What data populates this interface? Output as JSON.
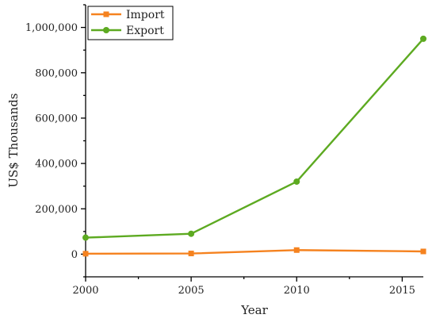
{
  "chart_data": {
    "type": "line",
    "title": "",
    "xlabel": "Year",
    "ylabel": "US$ Thousands",
    "xlim": [
      2000,
      2016
    ],
    "ylim": [
      -100000,
      1100000
    ],
    "x_ticks": [
      2000,
      2005,
      2010,
      2015
    ],
    "x_tick_labels": [
      "2000",
      "2005",
      "2010",
      "2015"
    ],
    "y_ticks": [
      0,
      200000,
      400000,
      600000,
      800000,
      1000000
    ],
    "y_tick_labels": [
      "0",
      "200,000",
      "400,000",
      "600,000",
      "800,000",
      "1,000,000"
    ],
    "grid": false,
    "legend_position": "top-left",
    "series": [
      {
        "name": "Import",
        "color": "#F5821F",
        "marker": "square",
        "points": [
          {
            "x": 2000,
            "y": 2000
          },
          {
            "x": 2005,
            "y": 3000
          },
          {
            "x": 2010,
            "y": 18000
          },
          {
            "x": 2016,
            "y": 12000
          }
        ]
      },
      {
        "name": "Export",
        "color": "#5DAA21",
        "marker": "circle",
        "points": [
          {
            "x": 2000,
            "y": 73000
          },
          {
            "x": 2005,
            "y": 90000
          },
          {
            "x": 2010,
            "y": 320000
          },
          {
            "x": 2016,
            "y": 950000
          }
        ]
      }
    ]
  }
}
